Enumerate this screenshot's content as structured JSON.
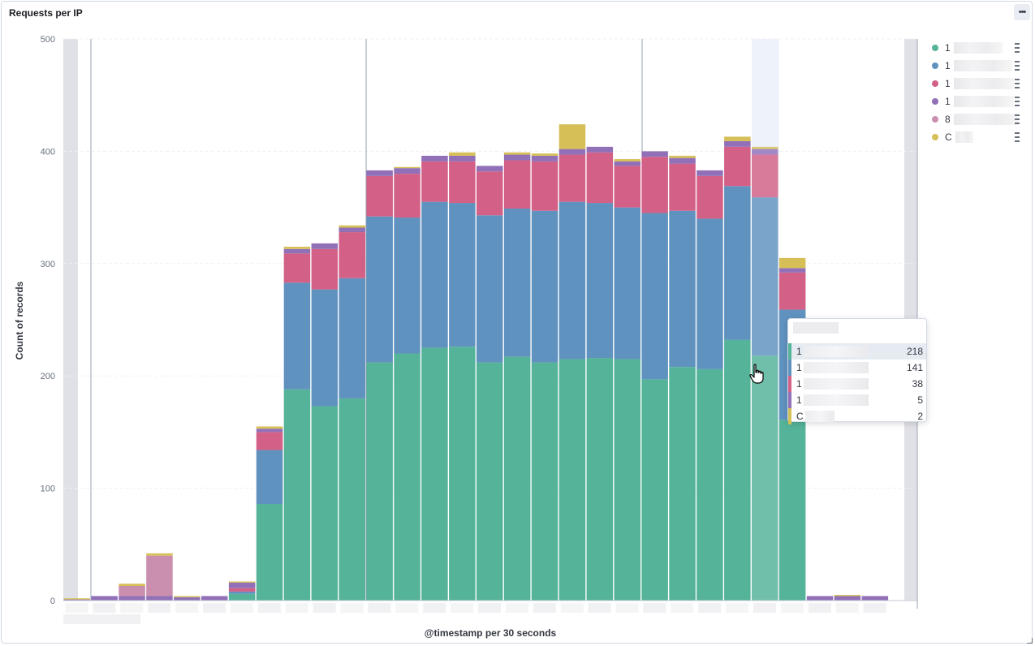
{
  "panel": {
    "title": "Requests per IP",
    "menu_icon": "more-horizontal-icon"
  },
  "colors": {
    "series": [
      "#54b399",
      "#6092c0",
      "#d36086",
      "#9170b8",
      "#ca8eae",
      "#d6bf57"
    ],
    "bg_band": "#e0e1e6",
    "highlight": "#eef2fa"
  },
  "chart_data": {
    "type": "bar",
    "stacked": true,
    "title": "Requests per IP",
    "xlabel": "@timestamp per 30 seconds",
    "ylabel": "Count of records",
    "ylim": [
      0,
      500
    ],
    "yticks": [
      0,
      100,
      200,
      300,
      400,
      500
    ],
    "grid": true,
    "legend_position": "top-right",
    "highlighted_bucket": 25,
    "series": [
      {
        "name": "1",
        "values": [
          0,
          0,
          0,
          0,
          0,
          0,
          6,
          86,
          188,
          173,
          180,
          212,
          220,
          225,
          226,
          212,
          217,
          212,
          215,
          216,
          215,
          197,
          208,
          206,
          232,
          218,
          161,
          0,
          0,
          0
        ]
      },
      {
        "name": "1",
        "values": [
          0,
          0,
          0,
          0,
          0,
          0,
          2,
          48,
          95,
          104,
          107,
          130,
          121,
          130,
          128,
          131,
          132,
          135,
          140,
          138,
          135,
          148,
          139,
          134,
          137,
          141,
          98,
          0,
          0,
          0
        ]
      },
      {
        "name": "1",
        "values": [
          0,
          0,
          0,
          0,
          0,
          0,
          3,
          16,
          26,
          36,
          41,
          36,
          39,
          36,
          37,
          39,
          43,
          44,
          42,
          45,
          37,
          50,
          42,
          38,
          35,
          38,
          33,
          0,
          0,
          0
        ]
      },
      {
        "name": "1",
        "values": [
          1,
          4,
          4,
          4,
          3,
          4,
          5,
          3,
          4,
          5,
          4,
          5,
          5,
          5,
          5,
          5,
          5,
          5,
          5,
          5,
          4,
          5,
          5,
          5,
          5,
          5,
          4,
          4,
          4,
          4
        ]
      },
      {
        "name": "8",
        "values": [
          0,
          0,
          9,
          36,
          0,
          0,
          0,
          0,
          0,
          0,
          0,
          0,
          0,
          0,
          0,
          0,
          0,
          0,
          0,
          0,
          0,
          0,
          0,
          0,
          0,
          0,
          0,
          0,
          0,
          0
        ]
      },
      {
        "name": "C",
        "values": [
          1,
          0,
          2,
          2,
          1,
          0,
          1,
          2,
          2,
          0,
          2,
          0,
          1,
          0,
          3,
          0,
          2,
          2,
          22,
          0,
          2,
          0,
          2,
          0,
          4,
          2,
          9,
          0,
          1,
          0
        ]
      }
    ]
  },
  "legend": {
    "items": [
      {
        "label": "1",
        "icon": "legend-options-icon"
      },
      {
        "label": "1",
        "icon": "legend-options-icon"
      },
      {
        "label": "1",
        "icon": "legend-options-icon"
      },
      {
        "label": "1",
        "icon": "legend-options-icon"
      },
      {
        "label": "8",
        "icon": "legend-options-icon"
      },
      {
        "label": "C",
        "icon": "legend-options-icon"
      }
    ]
  },
  "tooltip": {
    "rows": [
      {
        "label": "1",
        "value": "218"
      },
      {
        "label": "1",
        "value": "141"
      },
      {
        "label": "1",
        "value": "38"
      },
      {
        "label": "1",
        "value": "5"
      },
      {
        "label": "C",
        "value": "2"
      }
    ]
  }
}
